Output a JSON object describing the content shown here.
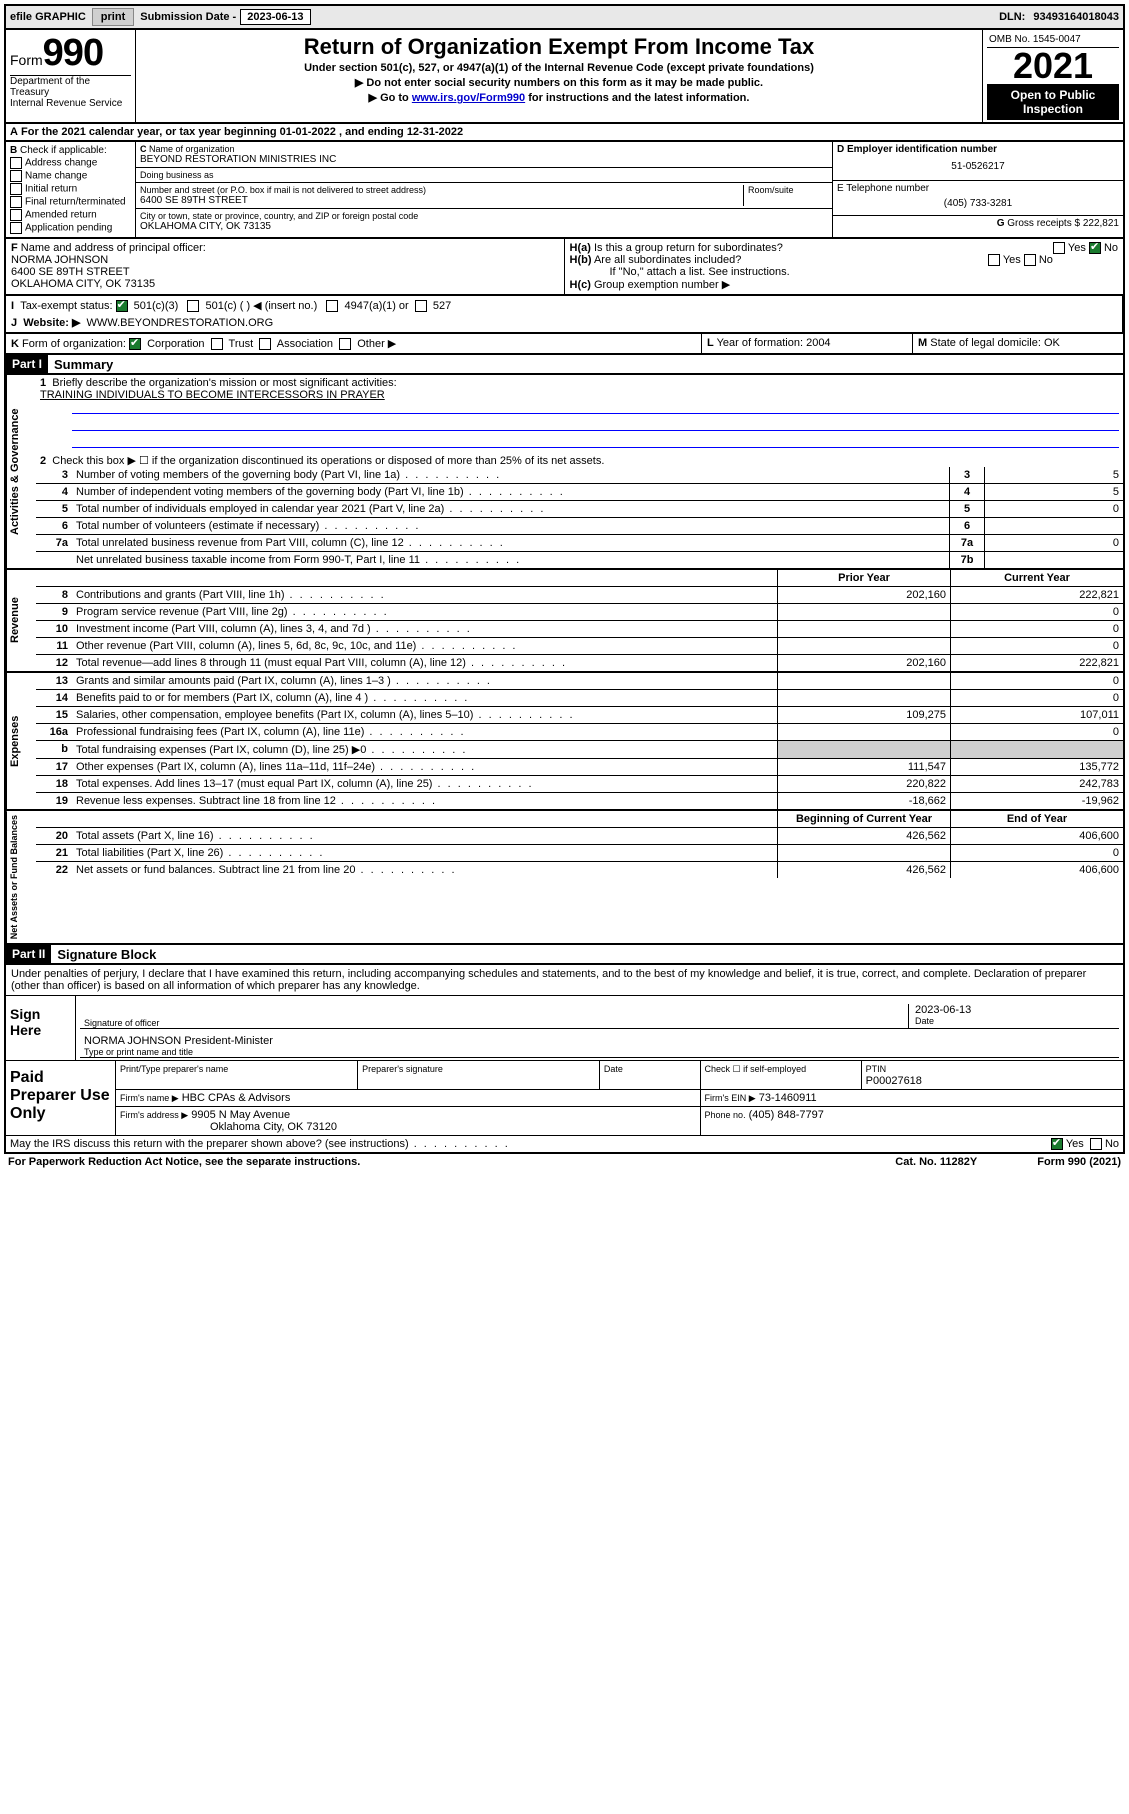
{
  "topbar": {
    "efile": "efile GRAPHIC",
    "print": "print",
    "sub_label": "Submission Date -",
    "sub_date": "2023-06-13",
    "dln_label": "DLN:",
    "dln": "93493164018043"
  },
  "header": {
    "form_word": "Form",
    "form_num": "990",
    "title": "Return of Organization Exempt From Income Tax",
    "subtitle": "Under section 501(c), 527, or 4947(a)(1) of the Internal Revenue Code (except private foundations)",
    "note1": "▶ Do not enter social security numbers on this form as it may be made public.",
    "note2_pre": "▶ Go to ",
    "note2_link": "www.irs.gov/Form990",
    "note2_post": " for instructions and the latest information.",
    "omb": "OMB No. 1545-0047",
    "year": "2021",
    "open": "Open to Public Inspection",
    "dept": "Department of the Treasury",
    "irs": "Internal Revenue Service"
  },
  "sectionA": {
    "a_label": "A",
    "a_text": "For the 2021 calendar year, or tax year beginning ",
    "begin": "01-01-2022",
    "mid": " , and ending ",
    "end": "12-31-2022"
  },
  "colB": {
    "label": "B",
    "intro": "Check if applicable:",
    "items": [
      "Address change",
      "Name change",
      "Initial return",
      "Final return/terminated",
      "Amended return",
      "Application pending"
    ]
  },
  "colC": {
    "c_label": "C",
    "name_label": "Name of organization",
    "name": "BEYOND RESTORATION MINISTRIES INC",
    "dba_label": "Doing business as",
    "dba": "",
    "street_label": "Number and street (or P.O. box if mail is not delivered to street address)",
    "room_label": "Room/suite",
    "street": "6400 SE 89TH STREET",
    "city_label": "City or town, state or province, country, and ZIP or foreign postal code",
    "city": "OKLAHOMA CITY, OK  73135"
  },
  "colD": {
    "d_label": "D Employer identification number",
    "ein": "51-0526217",
    "e_label": "E Telephone number",
    "phone": "(405) 733-3281",
    "g_label": "G",
    "g_text": "Gross receipts $",
    "g_val": "222,821"
  },
  "sectionF": {
    "f_label": "F",
    "f_text": "Name and address of principal officer:",
    "name": "NORMA JOHNSON",
    "street": "6400 SE 89TH STREET",
    "city": "OKLAHOMA CITY, OK  73135"
  },
  "sectionH": {
    "ha_label": "H(a)",
    "ha_text": "Is this a group return for subordinates?",
    "hb_label": "H(b)",
    "hb_text": "Are all subordinates included?",
    "hb_note": "If \"No,\" attach a list. See instructions.",
    "hc_label": "H(c)",
    "hc_text": "Group exemption number ▶",
    "yes": "Yes",
    "no": "No"
  },
  "rowI": {
    "i_label": "I",
    "i_text": "Tax-exempt status:",
    "opt1": "501(c)(3)",
    "opt2": "501(c) (  ) ◀ (insert no.)",
    "opt3": "4947(a)(1) or",
    "opt4": "527"
  },
  "rowJ": {
    "j_label": "J",
    "j_text": "Website: ▶",
    "site": "WWW.BEYONDRESTORATION.ORG"
  },
  "rowK": {
    "k_label": "K",
    "k_text": "Form of organization:",
    "opts": [
      "Corporation",
      "Trust",
      "Association",
      "Other ▶"
    ],
    "l_label": "L",
    "l_text": "Year of formation:",
    "l_val": "2004",
    "m_label": "M",
    "m_text": "State of legal domicile:",
    "m_val": "OK"
  },
  "part1": {
    "label": "Part I",
    "title": "Summary"
  },
  "gov": {
    "tab": "Activities & Governance",
    "l1_num": "1",
    "l1": "Briefly describe the organization's mission or most significant activities:",
    "mission": "TRAINING INDIVIDUALS TO BECOME INTERCESSORS IN PRAYER",
    "l2_num": "2",
    "l2": "Check this box ▶ ☐ if the organization discontinued its operations or disposed of more than 25% of its net assets.",
    "rows": [
      {
        "n": "3",
        "d": "Number of voting members of the governing body (Part VI, line 1a)",
        "b": "3",
        "v": "5"
      },
      {
        "n": "4",
        "d": "Number of independent voting members of the governing body (Part VI, line 1b)",
        "b": "4",
        "v": "5"
      },
      {
        "n": "5",
        "d": "Total number of individuals employed in calendar year 2021 (Part V, line 2a)",
        "b": "5",
        "v": "0"
      },
      {
        "n": "6",
        "d": "Total number of volunteers (estimate if necessary)",
        "b": "6",
        "v": ""
      },
      {
        "n": "7a",
        "d": "Total unrelated business revenue from Part VIII, column (C), line 12",
        "b": "7a",
        "v": "0"
      },
      {
        "n": "",
        "d": "Net unrelated business taxable income from Form 990-T, Part I, line 11",
        "b": "7b",
        "v": ""
      }
    ]
  },
  "rev": {
    "tab": "Revenue",
    "h_prior": "Prior Year",
    "h_curr": "Current Year",
    "rows": [
      {
        "n": "8",
        "d": "Contributions and grants (Part VIII, line 1h)",
        "p": "202,160",
        "c": "222,821"
      },
      {
        "n": "9",
        "d": "Program service revenue (Part VIII, line 2g)",
        "p": "",
        "c": "0"
      },
      {
        "n": "10",
        "d": "Investment income (Part VIII, column (A), lines 3, 4, and 7d )",
        "p": "",
        "c": "0"
      },
      {
        "n": "11",
        "d": "Other revenue (Part VIII, column (A), lines 5, 6d, 8c, 9c, 10c, and 11e)",
        "p": "",
        "c": "0"
      },
      {
        "n": "12",
        "d": "Total revenue—add lines 8 through 11 (must equal Part VIII, column (A), line 12)",
        "p": "202,160",
        "c": "222,821"
      }
    ]
  },
  "exp": {
    "tab": "Expenses",
    "rows": [
      {
        "n": "13",
        "d": "Grants and similar amounts paid (Part IX, column (A), lines 1–3 )",
        "p": "",
        "c": "0"
      },
      {
        "n": "14",
        "d": "Benefits paid to or for members (Part IX, column (A), line 4 )",
        "p": "",
        "c": "0"
      },
      {
        "n": "15",
        "d": "Salaries, other compensation, employee benefits (Part IX, column (A), lines 5–10)",
        "p": "109,275",
        "c": "107,011"
      },
      {
        "n": "16a",
        "d": "Professional fundraising fees (Part IX, column (A), line 11e)",
        "p": "",
        "c": "0"
      },
      {
        "n": "b",
        "d": "Total fundraising expenses (Part IX, column (D), line 25) ▶0",
        "p": "shaded",
        "c": "shaded"
      },
      {
        "n": "17",
        "d": "Other expenses (Part IX, column (A), lines 11a–11d, 11f–24e)",
        "p": "111,547",
        "c": "135,772"
      },
      {
        "n": "18",
        "d": "Total expenses. Add lines 13–17 (must equal Part IX, column (A), line 25)",
        "p": "220,822",
        "c": "242,783"
      },
      {
        "n": "19",
        "d": "Revenue less expenses. Subtract line 18 from line 12",
        "p": "-18,662",
        "c": "-19,962"
      }
    ]
  },
  "net": {
    "tab": "Net Assets or Fund Balances",
    "h_begin": "Beginning of Current Year",
    "h_end": "End of Year",
    "rows": [
      {
        "n": "20",
        "d": "Total assets (Part X, line 16)",
        "p": "426,562",
        "c": "406,600"
      },
      {
        "n": "21",
        "d": "Total liabilities (Part X, line 26)",
        "p": "",
        "c": "0"
      },
      {
        "n": "22",
        "d": "Net assets or fund balances. Subtract line 21 from line 20",
        "p": "426,562",
        "c": "406,600"
      }
    ]
  },
  "part2": {
    "label": "Part II",
    "title": "Signature Block",
    "declare": "Under penalties of perjury, I declare that I have examined this return, including accompanying schedules and statements, and to the best of my knowledge and belief, it is true, correct, and complete. Declaration of preparer (other than officer) is based on all information of which preparer has any knowledge.",
    "sign_here": "Sign Here",
    "sig_caption": "Signature of officer",
    "date_caption": "Date",
    "date_val": "2023-06-13",
    "officer": "NORMA JOHNSON  President-Minister",
    "name_caption": "Type or print name and title"
  },
  "preparer": {
    "label": "Paid Preparer Use Only",
    "h_name": "Print/Type preparer's name",
    "h_sig": "Preparer's signature",
    "h_date": "Date",
    "h_check": "Check ☐ if self-employed",
    "h_ptin": "PTIN",
    "ptin": "P00027618",
    "firm_name_l": "Firm's name    ▶",
    "firm_name": "HBC CPAs & Advisors",
    "firm_ein_l": "Firm's EIN ▶",
    "firm_ein": "73-1460911",
    "firm_addr_l": "Firm's address ▶",
    "firm_addr": "9905 N May Avenue",
    "firm_city": "Oklahoma City, OK  73120",
    "firm_phone_l": "Phone no.",
    "firm_phone": "(405) 848-7797"
  },
  "footer": {
    "discuss": "May the IRS discuss this return with the preparer shown above? (see instructions)",
    "yes": "Yes",
    "no": "No",
    "paperwork": "For Paperwork Reduction Act Notice, see the separate instructions.",
    "cat": "Cat. No. 11282Y",
    "form": "Form 990 (2021)"
  }
}
